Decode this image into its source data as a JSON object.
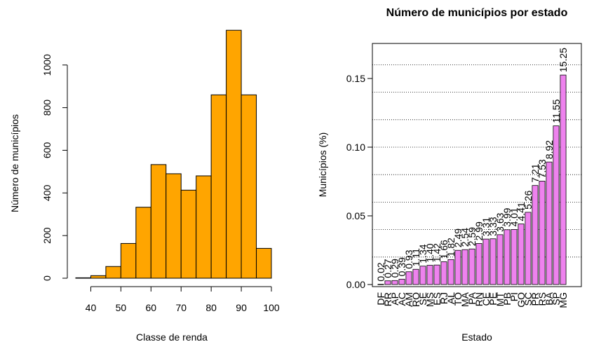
{
  "chart_data": [
    {
      "type": "bar",
      "title": "",
      "xlabel": "Classe de renda",
      "ylabel": "Número de municípios",
      "categories": [
        "35-40",
        "40-45",
        "45-50",
        "50-55",
        "55-60",
        "60-65",
        "65-70",
        "70-75",
        "75-80",
        "80-85",
        "85-90",
        "90-95",
        "95-100"
      ],
      "bin_edges": [
        35,
        40,
        45,
        50,
        55,
        60,
        65,
        70,
        75,
        80,
        85,
        90,
        95,
        100
      ],
      "values": [
        2,
        12,
        55,
        163,
        333,
        533,
        490,
        413,
        480,
        860,
        1163,
        860,
        140
      ],
      "xticks": [
        40,
        50,
        60,
        70,
        80,
        90,
        100
      ],
      "xticks_text": [
        "40",
        "50",
        "60",
        "70",
        "80",
        "90",
        "100"
      ],
      "yticks": [
        0,
        200,
        400,
        600,
        800,
        1000
      ],
      "yticks_text": [
        "0",
        "200",
        "400",
        "600",
        "800",
        "1000"
      ],
      "xlim": [
        35,
        100
      ],
      "ylim": [
        0,
        1180
      ],
      "bar_color": "#FFA500",
      "grid": false
    },
    {
      "type": "bar",
      "title": "Número de municípios por estado",
      "xlabel": "Estado",
      "ylabel": "Municípios (%)",
      "categories": [
        "DF",
        "RR",
        "AP",
        "AC",
        "AM",
        "RO",
        "SE",
        "MS",
        "ES",
        "RJ",
        "AL",
        "TO",
        "MA",
        "PA",
        "RN",
        "CE",
        "PE",
        "MT",
        "PB",
        "PI",
        "GO",
        "SC",
        "PR",
        "RS",
        "BA",
        "SP",
        "MG"
      ],
      "values": [
        0.0002,
        0.0027,
        0.0029,
        0.0039,
        0.0093,
        0.0111,
        0.0134,
        0.014,
        0.0142,
        0.0166,
        0.0182,
        0.0249,
        0.0254,
        0.0259,
        0.0299,
        0.0331,
        0.0333,
        0.0363,
        0.0399,
        0.0401,
        0.0441,
        0.0526,
        0.0721,
        0.0753,
        0.0892,
        0.1155,
        0.1525
      ],
      "data_labels": [
        "0.02",
        "0.27",
        "0.29",
        "0.39",
        "0.93",
        "1.11",
        "1.34",
        "1.40",
        "1.42",
        "1.66",
        "1.82",
        "2.49",
        "2.54",
        "2.59",
        "2.99",
        "3.31",
        "3.33",
        "3.63",
        "3.99",
        "4.01",
        "4.41",
        "5.26",
        "7.21",
        "7.53",
        "8.92",
        "11.55",
        "15.25"
      ],
      "yticks": [
        0,
        0.05,
        0.1,
        0.15
      ],
      "yticks_text": [
        "0.00",
        "0.05",
        "0.10",
        "0.15"
      ],
      "ylim": [
        0,
        0.175
      ],
      "gridlines_y": [
        0.02,
        0.04,
        0.06,
        0.08,
        0.1,
        0.12,
        0.14,
        0.16
      ],
      "grid": true,
      "bar_color": "#EE82EE"
    }
  ]
}
